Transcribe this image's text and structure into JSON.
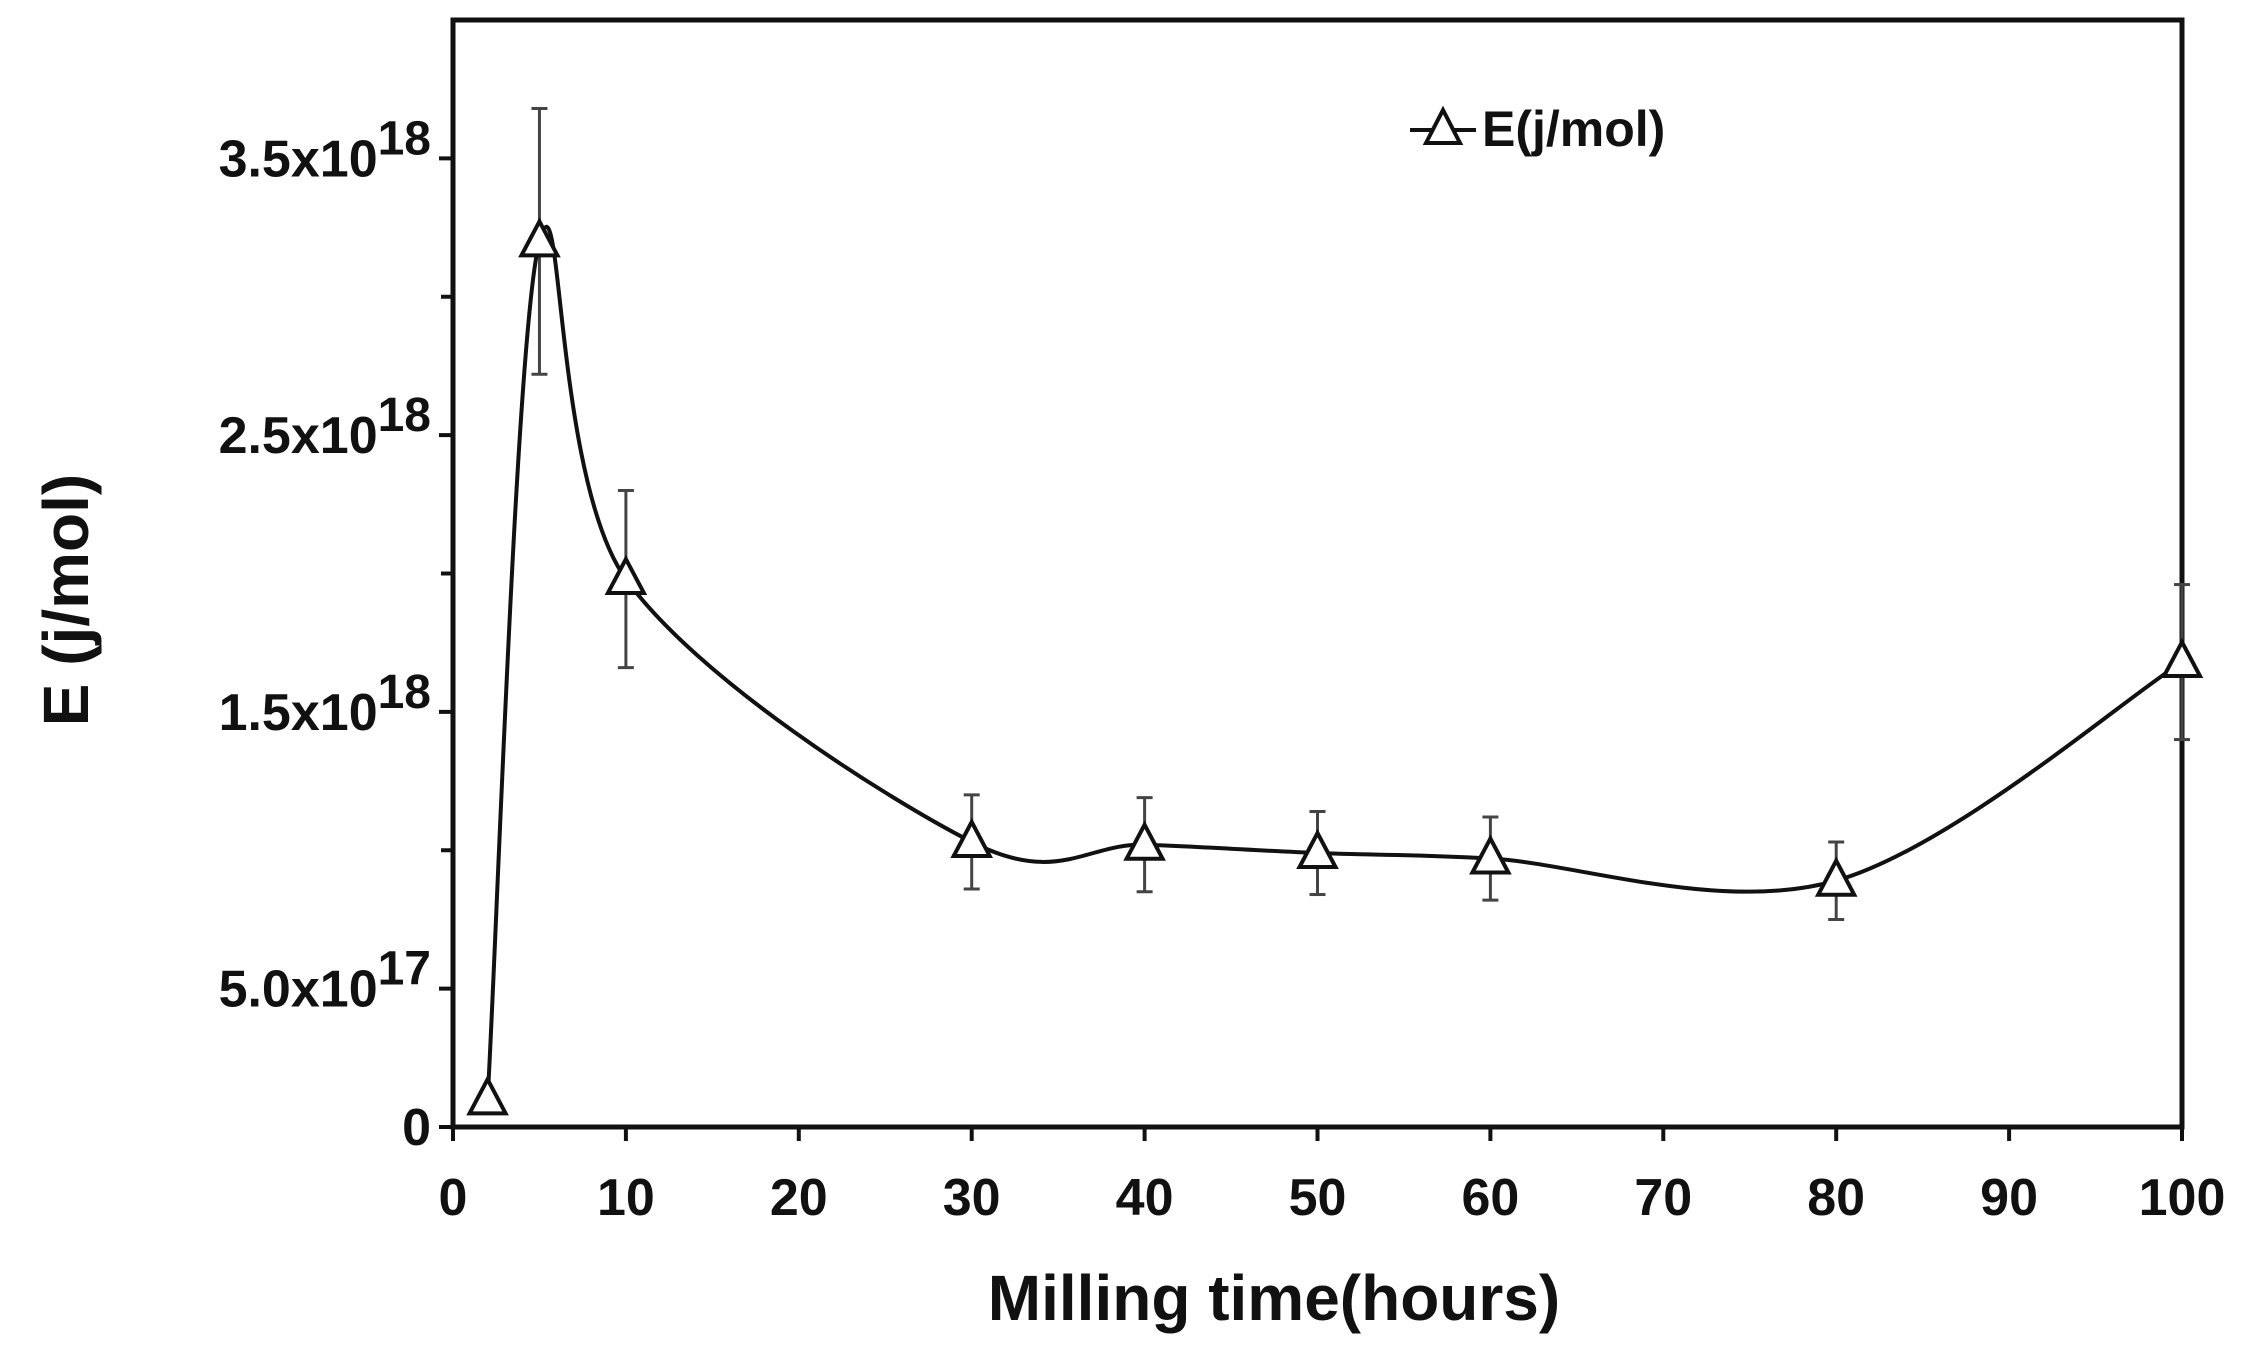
{
  "chart_data": {
    "type": "line",
    "title": "",
    "xlabel": "Milling time(hours)",
    "ylabel": "E (j/mol)",
    "xlim": [
      0,
      100
    ],
    "ylim": [
      0,
      4e+18
    ],
    "x_ticks": [
      0,
      10,
      20,
      30,
      40,
      50,
      60,
      70,
      80,
      90,
      100
    ],
    "y_ticks": [
      {
        "value": 3.5e+18,
        "mantissa": "3.5x10",
        "exponent": "18"
      },
      {
        "value": 2.5e+18,
        "mantissa": "2.5x10",
        "exponent": "18"
      },
      {
        "value": 1.5e+18,
        "mantissa": "1.5x10",
        "exponent": "18"
      },
      {
        "value": 5e+17,
        "mantissa": "5.0x10",
        "exponent": "17"
      },
      {
        "value": 0,
        "mantissa": "0",
        "exponent": ""
      }
    ],
    "y_minor_ticks": [
      3e+18,
      2e+18,
      1e+18
    ],
    "grid": false,
    "legend": {
      "position": "top-right",
      "marker": "open-triangle"
    },
    "series": [
      {
        "name": "E(j/mol)",
        "color": "#111111",
        "marker": "open-triangle",
        "x": [
          2,
          5,
          10,
          30,
          40,
          50,
          60,
          80,
          100
        ],
        "y": [
          1e+17,
          3.2e+18,
          1.98e+18,
          1.03e+18,
          1.02e+18,
          9.9e+17,
          9.7e+17,
          8.9e+17,
          1.68e+18
        ],
        "error": [
          0,
          4.8e+17,
          3.2e+17,
          1.7e+17,
          1.7e+17,
          1.5e+17,
          1.5e+17,
          1.4e+17,
          2.8e+17
        ]
      }
    ]
  }
}
